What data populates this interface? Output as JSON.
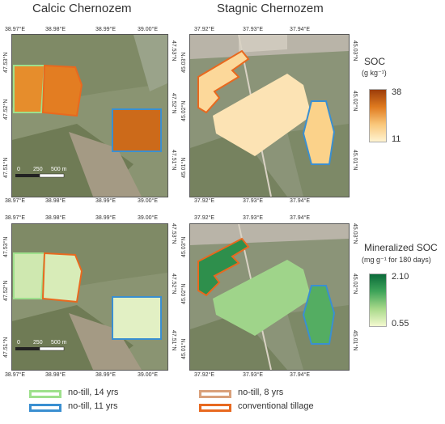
{
  "titles": {
    "left": "Calcic Chernozem",
    "right": "Stagnic Chernozem"
  },
  "left_ticks": {
    "x": [
      "38.97°E",
      "38.98°E",
      "38.99°E",
      "39.00°E"
    ],
    "y_left": [
      "47.53°N",
      "47.52°N",
      "47.51°N"
    ],
    "y_right": [
      "47.53°N",
      "47.52°N",
      "47.51°N"
    ]
  },
  "right_ticks": {
    "x": [
      "37.92°E",
      "37.93°E",
      "37.94°E"
    ],
    "y_left": [
      "45.03°N",
      "45.02°N",
      "45.01°N"
    ],
    "y_right": [
      "45.03°N",
      "45.02°N",
      "45.01°N"
    ]
  },
  "scalebar": {
    "labels": [
      "0",
      "250",
      "500 m"
    ]
  },
  "colorbar_soc": {
    "title": "SOC",
    "unit": "(g kg⁻¹)",
    "max": "38",
    "min": "11",
    "colors": [
      "#9c3d0a",
      "#e07b20",
      "#f9c77a",
      "#fff3d0"
    ]
  },
  "colorbar_min": {
    "title": "Mineralized SOC",
    "unit": "(mg g⁻¹ for 180 days)",
    "max": "2.10",
    "min": "0.55",
    "colors": [
      "#0b6b3a",
      "#3fa55a",
      "#a8d98a",
      "#f4f9d0"
    ]
  },
  "legend": [
    {
      "label": "no-till, 14 yrs",
      "color": "#9ee08c"
    },
    {
      "label": "no-till, 11 yrs",
      "color": "#3a8fd1"
    },
    {
      "label": "no-till, 8 yrs",
      "color": "#d9a07a"
    },
    {
      "label": "conventional tillage",
      "color": "#e8691f"
    }
  ]
}
